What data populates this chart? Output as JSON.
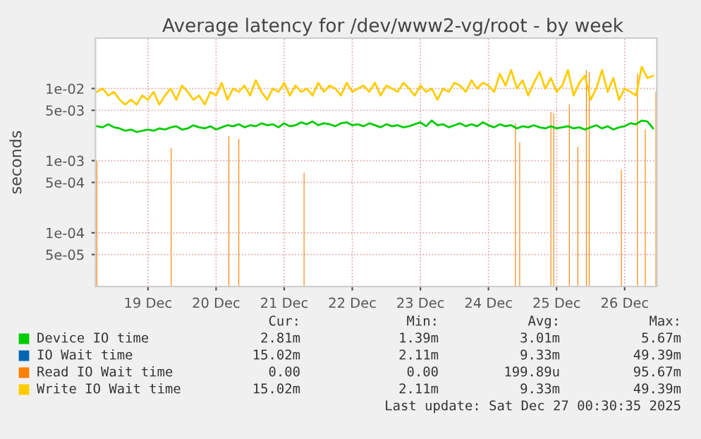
{
  "chart_data": {
    "type": "line",
    "title": "Average latency for /dev/www2-vg/root - by week",
    "ylabel": "seconds",
    "log": "y",
    "grid": true,
    "legend": "bottom",
    "xlim": [
      "2025-12-18T17:30",
      "2025-12-26T23:20"
    ],
    "xticks": [
      {
        "value": "2025-12-19T12:00",
        "label": "19 Dec"
      },
      {
        "value": "2025-12-20T12:00",
        "label": "20 Dec"
      },
      {
        "value": "2025-12-21T12:00",
        "label": "21 Dec"
      },
      {
        "value": "2025-12-22T12:00",
        "label": "22 Dec"
      },
      {
        "value": "2025-12-23T12:00",
        "label": "23 Dec"
      },
      {
        "value": "2025-12-24T12:00",
        "label": "24 Dec"
      },
      {
        "value": "2025-12-25T12:00",
        "label": "25 Dec"
      },
      {
        "value": "2025-12-26T12:00",
        "label": "26 Dec"
      }
    ],
    "ylim": [
      1.8e-05,
      0.05
    ],
    "yticks": [
      {
        "value": 5e-05,
        "label": "5e-05"
      },
      {
        "value": 0.0001,
        "label": "1e-04"
      },
      {
        "value": 0.0005,
        "label": "5e-04"
      },
      {
        "value": 0.001,
        "label": "1e-03"
      },
      {
        "value": 0.005,
        "label": "5e-03"
      },
      {
        "value": 0.01,
        "label": "1e-02"
      }
    ],
    "x": [
      "2025-12-18T18:00",
      "2025-12-18T20:00",
      "2025-12-18T22:00",
      "2025-12-19T00:00",
      "2025-12-19T02:00",
      "2025-12-19T04:00",
      "2025-12-19T06:00",
      "2025-12-19T08:00",
      "2025-12-19T10:00",
      "2025-12-19T12:00",
      "2025-12-19T14:00",
      "2025-12-19T16:00",
      "2025-12-19T18:00",
      "2025-12-19T20:00",
      "2025-12-19T22:00",
      "2025-12-20T00:00",
      "2025-12-20T02:00",
      "2025-12-20T04:00",
      "2025-12-20T06:00",
      "2025-12-20T08:00",
      "2025-12-20T10:00",
      "2025-12-20T12:00",
      "2025-12-20T14:00",
      "2025-12-20T16:00",
      "2025-12-20T18:00",
      "2025-12-20T20:00",
      "2025-12-20T22:00",
      "2025-12-21T00:00",
      "2025-12-21T02:00",
      "2025-12-21T04:00",
      "2025-12-21T06:00",
      "2025-12-21T08:00",
      "2025-12-21T10:00",
      "2025-12-21T12:00",
      "2025-12-21T14:00",
      "2025-12-21T16:00",
      "2025-12-21T18:00",
      "2025-12-21T20:00",
      "2025-12-21T22:00",
      "2025-12-22T00:00",
      "2025-12-22T02:00",
      "2025-12-22T04:00",
      "2025-12-22T06:00",
      "2025-12-22T08:00",
      "2025-12-22T10:00",
      "2025-12-22T12:00",
      "2025-12-22T14:00",
      "2025-12-22T16:00",
      "2025-12-22T18:00",
      "2025-12-22T20:00",
      "2025-12-22T22:00",
      "2025-12-23T00:00",
      "2025-12-23T02:00",
      "2025-12-23T04:00",
      "2025-12-23T06:00",
      "2025-12-23T08:00",
      "2025-12-23T10:00",
      "2025-12-23T12:00",
      "2025-12-23T14:00",
      "2025-12-23T16:00",
      "2025-12-23T18:00",
      "2025-12-23T20:00",
      "2025-12-23T22:00",
      "2025-12-24T00:00",
      "2025-12-24T02:00",
      "2025-12-24T04:00",
      "2025-12-24T06:00",
      "2025-12-24T08:00",
      "2025-12-24T10:00",
      "2025-12-24T12:00",
      "2025-12-24T14:00",
      "2025-12-24T16:00",
      "2025-12-24T18:00",
      "2025-12-24T20:00",
      "2025-12-24T22:00",
      "2025-12-25T00:00",
      "2025-12-25T02:00",
      "2025-12-25T04:00",
      "2025-12-25T06:00",
      "2025-12-25T08:00",
      "2025-12-25T10:00",
      "2025-12-25T12:00",
      "2025-12-25T14:00",
      "2025-12-25T16:00",
      "2025-12-25T18:00",
      "2025-12-25T20:00",
      "2025-12-25T22:00",
      "2025-12-26T00:00",
      "2025-12-26T02:00",
      "2025-12-26T04:00",
      "2025-12-26T06:00",
      "2025-12-26T08:00",
      "2025-12-26T10:00",
      "2025-12-26T12:00",
      "2025-12-26T14:00",
      "2025-12-26T16:00",
      "2025-12-26T18:00",
      "2025-12-26T20:00",
      "2025-12-26T22:00"
    ],
    "series": [
      {
        "name": "Device IO time",
        "color": "#00cc00",
        "values": [
          0.003,
          0.0029,
          0.0032,
          0.0029,
          0.0028,
          0.0026,
          0.0027,
          0.0025,
          0.0026,
          0.0027,
          0.0026,
          0.0028,
          0.0027,
          0.0029,
          0.003,
          0.0027,
          0.0028,
          0.0031,
          0.0029,
          0.0028,
          0.003,
          0.0027,
          0.0029,
          0.0031,
          0.003,
          0.0032,
          0.0029,
          0.0031,
          0.003,
          0.0033,
          0.0031,
          0.0032,
          0.0029,
          0.0033,
          0.003,
          0.0031,
          0.0034,
          0.0032,
          0.0035,
          0.0031,
          0.0033,
          0.0032,
          0.003,
          0.0033,
          0.0034,
          0.0031,
          0.0032,
          0.003,
          0.0033,
          0.0031,
          0.0029,
          0.0032,
          0.003,
          0.0031,
          0.0029,
          0.003,
          0.0032,
          0.0034,
          0.003,
          0.0036,
          0.0031,
          0.0032,
          0.0029,
          0.0031,
          0.0033,
          0.003,
          0.0032,
          0.003,
          0.0034,
          0.0031,
          0.0029,
          0.0032,
          0.003,
          0.0031,
          0.0028,
          0.003,
          0.0029,
          0.0031,
          0.0029,
          0.0028,
          0.003,
          0.0028,
          0.0029,
          0.003,
          0.0028,
          0.0029,
          0.0027,
          0.0029,
          0.0031,
          0.0028,
          0.003,
          0.0027,
          0.0029,
          0.003,
          0.0033,
          0.0032,
          0.0036,
          0.0035,
          0.00281
        ]
      },
      {
        "name": "IO Wait time",
        "color": "#0066b3",
        "values": [
          null,
          null,
          null,
          null,
          null,
          null,
          null,
          null,
          null,
          null,
          null,
          null,
          null,
          null,
          null,
          null,
          null,
          null,
          null,
          null,
          null,
          null,
          null,
          null,
          null,
          null,
          null,
          null,
          null,
          null,
          null,
          null,
          null,
          null,
          null,
          null,
          null,
          null,
          null,
          null,
          null,
          null,
          null,
          null,
          null,
          null,
          null,
          null,
          null,
          null,
          null,
          null,
          null,
          null,
          null,
          null,
          null,
          null,
          null,
          null,
          null,
          null,
          null,
          null,
          null,
          null,
          null,
          null,
          null,
          null,
          null,
          null,
          null,
          null,
          null,
          null,
          null,
          null,
          null,
          null,
          null,
          null,
          null,
          null,
          null,
          null,
          null,
          null,
          null,
          null,
          null,
          null,
          null,
          null,
          null,
          null,
          null,
          null,
          null
        ]
      },
      {
        "name": "Read IO Wait time",
        "color": "#ff8000",
        "type": "bar",
        "x": [
          "2025-12-18T18:00",
          "2025-12-19T20:10",
          "2025-12-20T16:30",
          "2025-12-20T20:00",
          "2025-12-21T19:00",
          "2025-12-24T21:30",
          "2025-12-24T23:00",
          "2025-12-25T10:00",
          "2025-12-25T11:00",
          "2025-12-25T16:30",
          "2025-12-25T19:30",
          "2025-12-25T22:30",
          "2025-12-25T23:30",
          "2025-12-26T10:50",
          "2025-12-26T16:30",
          "2025-12-26T19:15",
          "2025-12-26T23:00"
        ],
        "values": [
          0.001,
          0.0015,
          0.0022,
          0.002,
          0.00068,
          0.0033,
          0.0018,
          0.0047,
          0.0045,
          0.006,
          0.00155,
          0.018,
          0.017,
          0.00075,
          0.016,
          0.0027,
          0.009
        ]
      },
      {
        "name": "Write IO Wait time",
        "color": "#ffcc00",
        "values": [
          0.009,
          0.01,
          0.008,
          0.009,
          0.007,
          0.006,
          0.007,
          0.006,
          0.008,
          0.007,
          0.009,
          0.006,
          0.008,
          0.01,
          0.007,
          0.011,
          0.009,
          0.007,
          0.008,
          0.006,
          0.009,
          0.008,
          0.012,
          0.007,
          0.01,
          0.009,
          0.011,
          0.008,
          0.013,
          0.009,
          0.007,
          0.01,
          0.009,
          0.012,
          0.008,
          0.011,
          0.009,
          0.01,
          0.008,
          0.012,
          0.009,
          0.011,
          0.01,
          0.008,
          0.012,
          0.009,
          0.01,
          0.011,
          0.009,
          0.012,
          0.008,
          0.011,
          0.01,
          0.009,
          0.012,
          0.01,
          0.008,
          0.011,
          0.009,
          0.01,
          0.007,
          0.01,
          0.009,
          0.012,
          0.011,
          0.009,
          0.013,
          0.01,
          0.012,
          0.011,
          0.009,
          0.016,
          0.011,
          0.018,
          0.01,
          0.013,
          0.008,
          0.012,
          0.017,
          0.01,
          0.014,
          0.009,
          0.011,
          0.018,
          0.008,
          0.012,
          0.015,
          0.007,
          0.01,
          0.018,
          0.009,
          0.014,
          0.007,
          0.01,
          0.009,
          0.008,
          0.02,
          0.014,
          0.015
        ]
      }
    ],
    "annotations": [
      "Cur:",
      "Min:",
      "Avg:",
      "Max:",
      "2.81m",
      "1.39m",
      "3.01m",
      "5.67m",
      "15.02m",
      "2.11m",
      "9.33m",
      "49.39m",
      "0.00",
      "0.00",
      "199.89u",
      "95.67m",
      "15.02m",
      "2.11m",
      "9.33m",
      "49.39m",
      "Last update: Sat Dec 27 00:30:35 2025"
    ]
  }
}
